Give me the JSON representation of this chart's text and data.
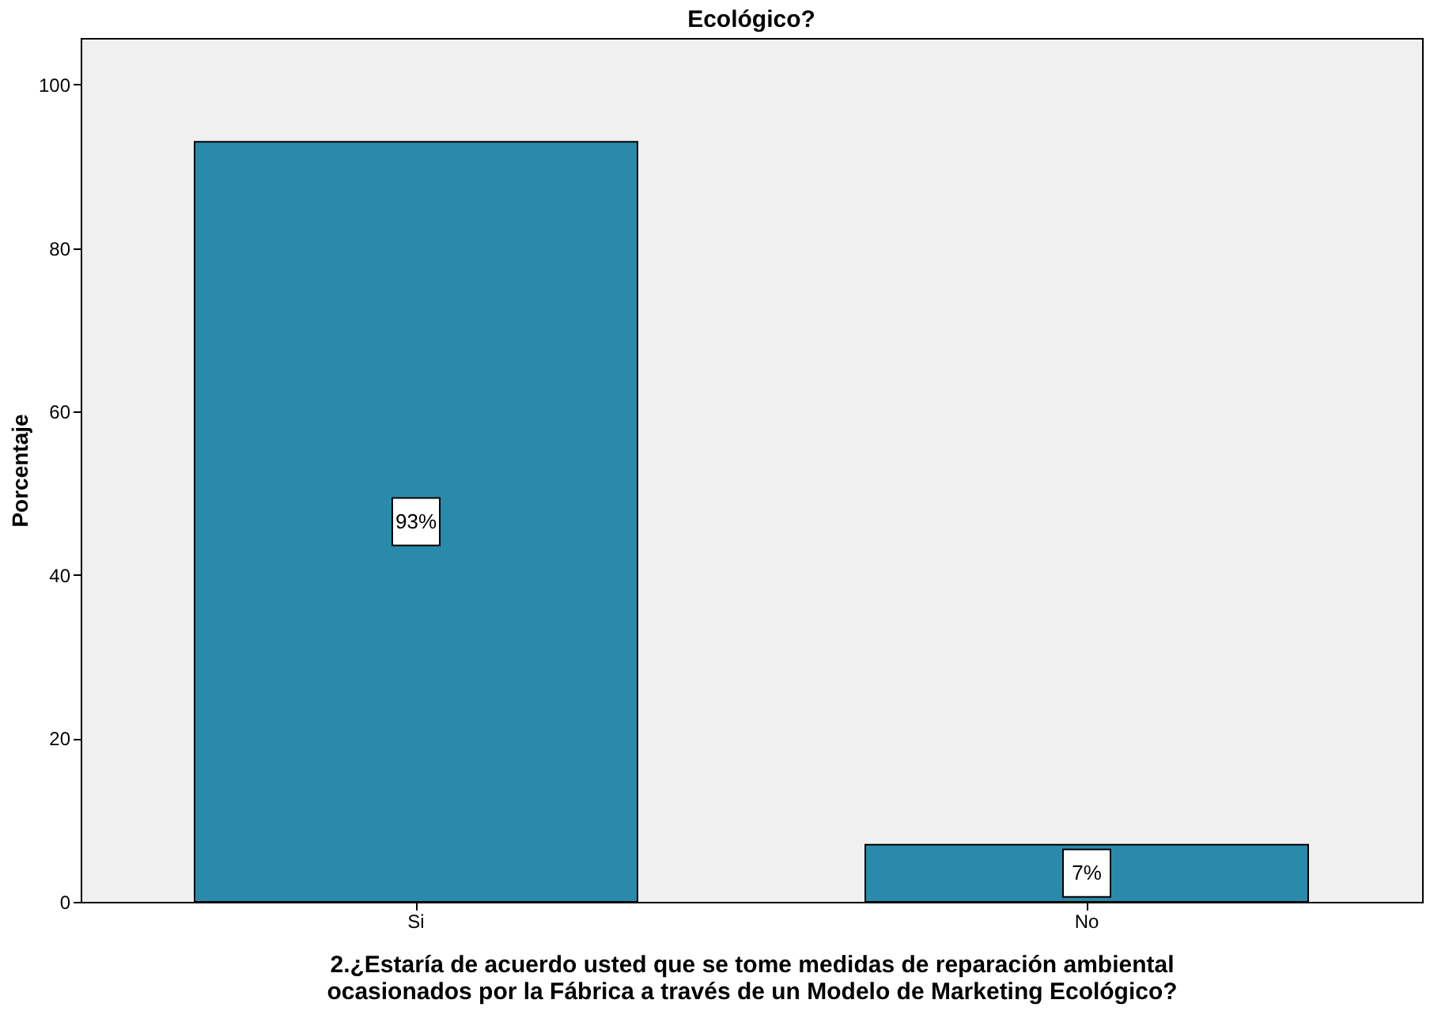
{
  "chart_data": {
    "type": "bar",
    "title": "Ecológico?",
    "categories": [
      "Si",
      "No"
    ],
    "values": [
      93,
      7
    ],
    "value_labels": [
      "93%",
      "7%"
    ],
    "color": "#2a8aab",
    "xlabel": "2.¿Estaría de acuerdo usted que se tome medidas de reparación ambiental ocasionados por la Fábrica a través de un Modelo de Marketing Ecológico?",
    "ylabel": "Porcentaje",
    "ylim": [
      0,
      105.7
    ],
    "yticks": [
      0,
      20,
      40,
      60,
      80,
      100
    ],
    "grid": false
  }
}
